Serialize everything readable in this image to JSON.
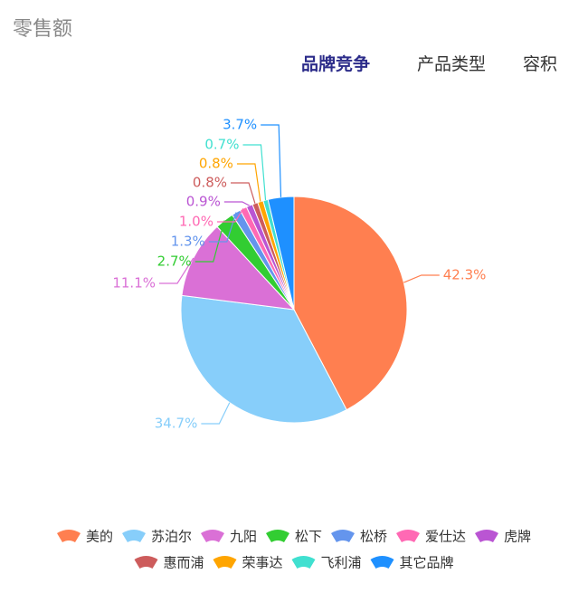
{
  "header": {
    "title": "零售额"
  },
  "tabs": [
    "品牌竞争",
    "产品类型",
    "容积"
  ],
  "active_tab": 0,
  "chart_data": {
    "type": "pie",
    "categories": [
      "美的",
      "苏泊尔",
      "九阳",
      "松下",
      "松桥",
      "爱仕达",
      "虎牌",
      "惠而浦",
      "荣事达",
      "飞利浦",
      "其它品牌"
    ],
    "values": [
      42.3,
      34.7,
      11.1,
      2.7,
      1.3,
      1.0,
      0.9,
      0.8,
      0.8,
      0.7,
      3.7
    ],
    "value_labels": [
      "42.3%",
      "34.7%",
      "11.1%",
      "2.7%",
      "1.3%",
      "1.0%",
      "0.9%",
      "0.8%",
      "0.8%",
      "0.7%",
      "3.7%"
    ],
    "colors": [
      "#ff7f50",
      "#87cefa",
      "#da70d6",
      "#32cd32",
      "#6495ed",
      "#ff69b4",
      "#ba55d3",
      "#cd5c5c",
      "#ffa500",
      "#40e0d0",
      "#1e90ff"
    ]
  }
}
